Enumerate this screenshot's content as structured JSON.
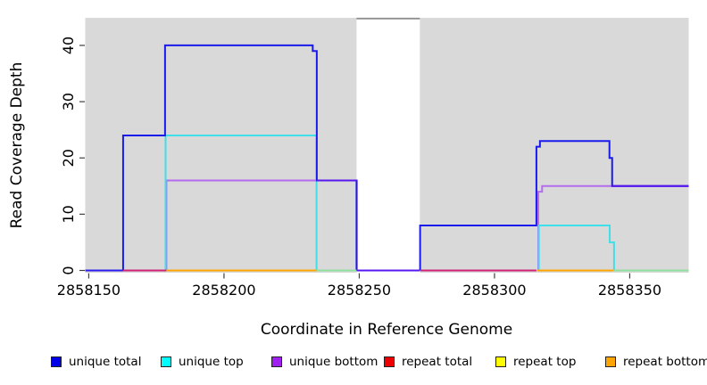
{
  "chart_data": {
    "type": "line",
    "title": "",
    "xlabel": "Coordinate in Reference Genome",
    "ylabel": "Read Coverage Depth",
    "x_ticks": [
      2858150,
      2858200,
      2858250,
      2858300,
      2858350
    ],
    "y_ticks": [
      0,
      10,
      20,
      30,
      40
    ],
    "xlim": [
      2858148.7,
      2858371.8
    ],
    "ylim": [
      -0.4,
      44.9
    ],
    "grid": false,
    "panel_bg": "#d9d9d9",
    "gap_region": {
      "x0": 2858249.0,
      "x1": 2858272.4,
      "fill": "#ffffff",
      "top_line_color": "#8f8f8f"
    },
    "series": [
      {
        "name": "unique bottom",
        "color": "#b46cee",
        "paths": [
          [
            [
              2858178.7,
              0
            ],
            [
              2858178.7,
              16
            ],
            [
              2858249.1,
              16
            ],
            [
              2858249.1,
              0
            ]
          ],
          [
            [
              2858316.2,
              0
            ],
            [
              2858316.2,
              14
            ],
            [
              2858317.6,
              14
            ],
            [
              2858317.6,
              15
            ],
            [
              2858371.8,
              15
            ]
          ]
        ]
      },
      {
        "name": "unique top",
        "color": "#3edfe8",
        "paths": [
          [
            [
              2858178.4,
              0
            ],
            [
              2858178.4,
              24
            ],
            [
              2858234.2,
              24
            ],
            [
              2858234.2,
              0
            ]
          ],
          [
            [
              2858316.4,
              0
            ],
            [
              2858316.4,
              8
            ],
            [
              2858342.6,
              8
            ],
            [
              2858342.6,
              5
            ],
            [
              2858344.2,
              5
            ],
            [
              2858344.2,
              0
            ]
          ]
        ]
      },
      {
        "name": "unique total",
        "color": "#1a1aea",
        "paths": [
          [
            [
              2858162.7,
              0
            ],
            [
              2858162.7,
              24
            ],
            [
              2858178.2,
              24
            ],
            [
              2858178.2,
              40
            ],
            [
              2858232.8,
              40
            ],
            [
              2858232.8,
              39
            ],
            [
              2858234.3,
              39
            ],
            [
              2858234.3,
              16
            ],
            [
              2858249.0,
              16
            ],
            [
              2858249.0,
              0
            ]
          ],
          [
            [
              2858272.5,
              0
            ],
            [
              2858272.5,
              8
            ],
            [
              2858315.5,
              8
            ],
            [
              2858315.5,
              22
            ],
            [
              2858316.8,
              22
            ],
            [
              2858316.8,
              23
            ],
            [
              2858342.5,
              23
            ],
            [
              2858342.5,
              20
            ],
            [
              2858343.5,
              20
            ],
            [
              2858343.5,
              15
            ],
            [
              2858371.8,
              15
            ]
          ]
        ]
      }
    ],
    "zero_line_segments": [
      {
        "x0": 2858148.7,
        "x1": 2858162.7,
        "color": "#2a1cee"
      },
      {
        "x0": 2858162.7,
        "x1": 2858178.7,
        "color": "#cf2277"
      },
      {
        "x0": 2858178.7,
        "x1": 2858234.2,
        "color": "#ffa500"
      },
      {
        "x0": 2858234.2,
        "x1": 2858249.0,
        "color": "#8fe09f"
      },
      {
        "x0": 2858249.0,
        "x1": 2858272.4,
        "color": "#5718f0"
      },
      {
        "x0": 2858272.6,
        "x1": 2858315.5,
        "color": "#cf2277"
      },
      {
        "x0": 2858315.8,
        "x1": 2858344.0,
        "color": "#ffa500"
      },
      {
        "x0": 2858344.0,
        "x1": 2858371.8,
        "color": "#8fe09f"
      }
    ],
    "overlap_segments": [
      {
        "y": 16,
        "x0": 2858234.3,
        "x1": 2858249.0,
        "color": "#5718f0"
      },
      {
        "y": 15,
        "x0": 2858343.5,
        "x1": 2858371.8,
        "color": "#5718f0"
      }
    ],
    "legend": {
      "items": [
        {
          "label": "unique total",
          "color": "#0000e8"
        },
        {
          "label": "unique top",
          "color": "#00ffff"
        },
        {
          "label": "unique bottom",
          "color": "#a020f0"
        },
        {
          "label": "repeat total",
          "color": "#ee0000"
        },
        {
          "label": "repeat top",
          "color": "#ffff00"
        },
        {
          "label": "repeat bottom",
          "color": "#ffa500"
        }
      ]
    }
  }
}
